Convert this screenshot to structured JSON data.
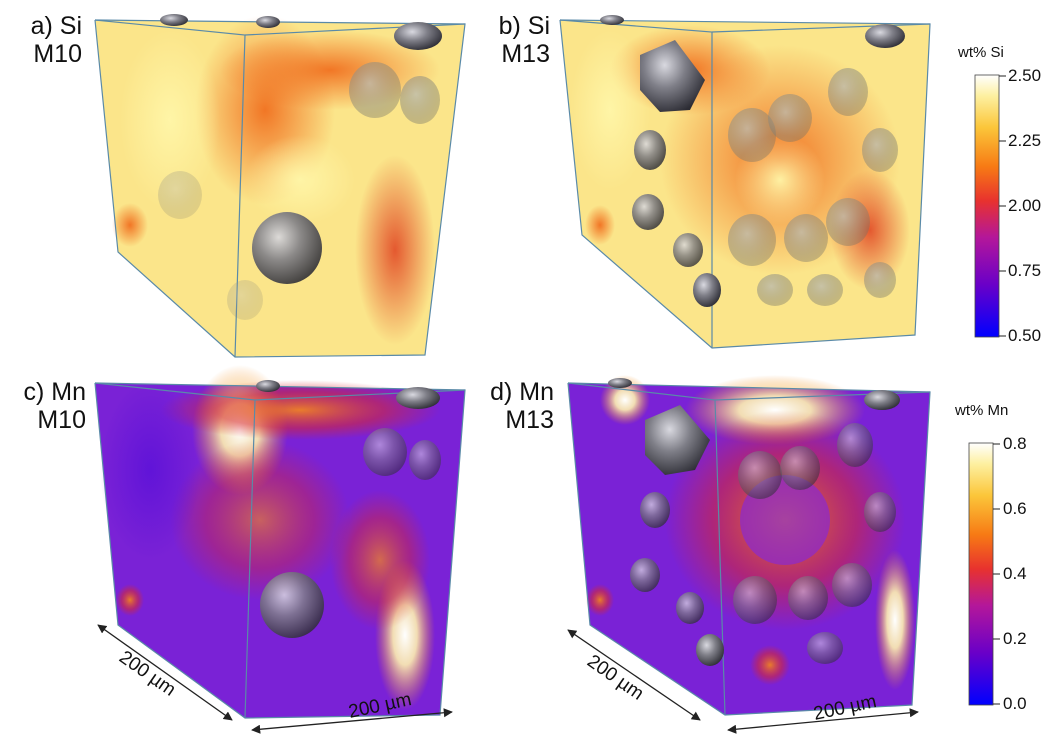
{
  "panels": [
    {
      "id": "a",
      "letter": "a)",
      "element": "Si",
      "sample": "M10",
      "map": "si"
    },
    {
      "id": "b",
      "letter": "b)",
      "element": "Si",
      "sample": "M13",
      "map": "si"
    },
    {
      "id": "c",
      "letter": "c)",
      "element": "Mn",
      "sample": "M10",
      "map": "mn"
    },
    {
      "id": "d",
      "letter": "d)",
      "element": "Mn",
      "sample": "M13",
      "map": "mn"
    }
  ],
  "colorbars": {
    "si": {
      "title": "wt% Si",
      "ticks": [
        "2.50",
        "2.25",
        "2.00",
        "0.75",
        "0.50"
      ]
    },
    "mn": {
      "title": "wt% Mn",
      "ticks": [
        "0.8",
        "0.6",
        "0.4",
        "0.2",
        "0.0"
      ]
    }
  },
  "colormap": [
    "#0000ff",
    "#6a00c8",
    "#b4179a",
    "#e8322e",
    "#f77a14",
    "#fbc63a",
    "#fdf0a0",
    "#ffffff"
  ],
  "scale_bars": {
    "left_edge": "200 µm",
    "right_edge": "200 µm"
  }
}
